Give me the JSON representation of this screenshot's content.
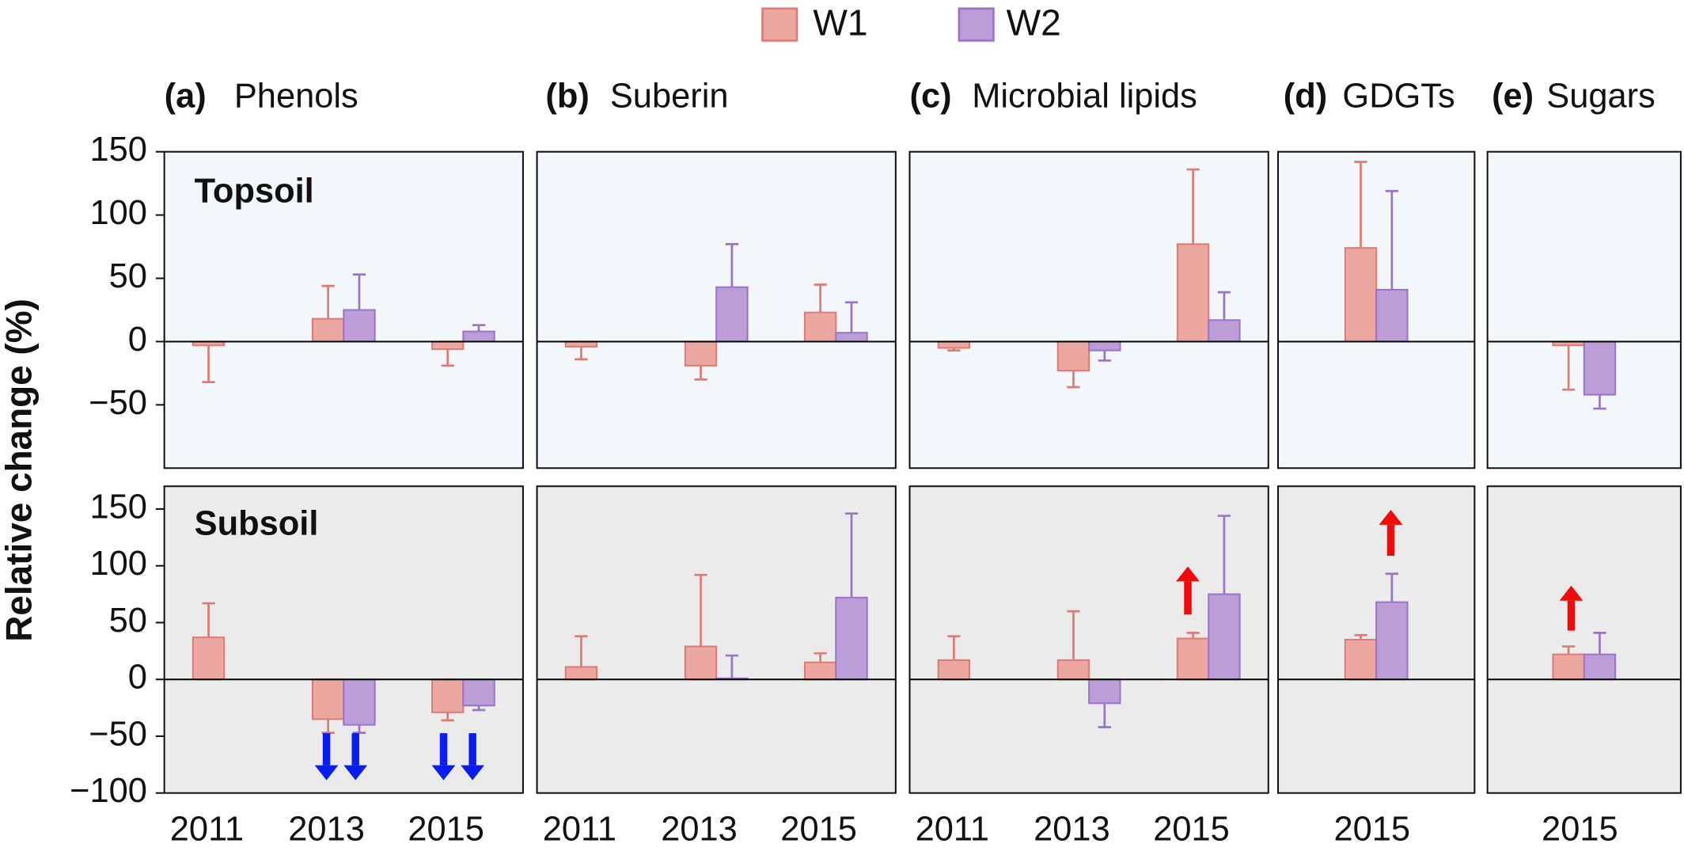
{
  "chart_data": [
    {
      "type": "bar",
      "panel_label": "(a)",
      "title": "Phenols",
      "annotation": "Topsoil",
      "facecolor": "#f3f7fb",
      "categories": [
        null,
        null,
        null
      ],
      "ylim": [
        -100,
        150
      ],
      "yticks": [
        {
          "value": -50,
          "label": "−50"
        },
        0,
        50,
        100,
        150
      ],
      "series": [
        {
          "name": "W1",
          "color": "#eca7a1",
          "edgecolor": "#e07b73",
          "values": [
            -3,
            18,
            -6
          ],
          "errors": [
            29,
            26,
            13
          ]
        },
        {
          "name": "W2",
          "color": "#bb9dd8",
          "edgecolor": "#9b73c8",
          "values": [
            null,
            25,
            8
          ],
          "errors": [
            null,
            28,
            5
          ]
        }
      ]
    },
    {
      "type": "bar",
      "panel_label": "(b)",
      "title": "Suberin",
      "facecolor": "#f3f7fb",
      "categories": [
        null,
        null,
        null
      ],
      "ylim": [
        -100,
        150
      ],
      "series": [
        {
          "name": "W1",
          "color": "#eca7a1",
          "edgecolor": "#e07b73",
          "values": [
            -4,
            -19,
            23
          ],
          "errors": [
            10,
            11,
            22
          ]
        },
        {
          "name": "W2",
          "color": "#bb9dd8",
          "edgecolor": "#9b73c8",
          "values": [
            null,
            43,
            7
          ],
          "errors": [
            null,
            34,
            24
          ]
        }
      ]
    },
    {
      "type": "bar",
      "panel_label": "(c)",
      "title": "Microbial lipids",
      "facecolor": "#f3f7fb",
      "categories": [
        null,
        null,
        null
      ],
      "ylim": [
        -100,
        150
      ],
      "series": [
        {
          "name": "W1",
          "color": "#eca7a1",
          "edgecolor": "#e07b73",
          "values": [
            -5,
            -23,
            77
          ],
          "errors": [
            2,
            13,
            59
          ]
        },
        {
          "name": "W2",
          "color": "#bb9dd8",
          "edgecolor": "#9b73c8",
          "values": [
            null,
            -7,
            17
          ],
          "errors": [
            null,
            8,
            22
          ]
        }
      ]
    },
    {
      "type": "bar",
      "panel_label": "(d)",
      "title": "GDGTs",
      "facecolor": "#f3f7fb",
      "categories": [
        null
      ],
      "ylim": [
        -100,
        150
      ],
      "series": [
        {
          "name": "W1",
          "color": "#eca7a1",
          "edgecolor": "#e07b73",
          "values": [
            74
          ],
          "errors": [
            68
          ]
        },
        {
          "name": "W2",
          "color": "#bb9dd8",
          "edgecolor": "#9b73c8",
          "values": [
            41
          ],
          "errors": [
            78
          ]
        }
      ]
    },
    {
      "type": "bar",
      "panel_label": "(e)",
      "title": "Sugars",
      "facecolor": "#f3f7fb",
      "categories": [
        null
      ],
      "ylim": [
        -100,
        150
      ],
      "series": [
        {
          "name": "W1",
          "color": "#eca7a1",
          "edgecolor": "#e07b73",
          "values": [
            -3
          ],
          "errors": [
            35
          ]
        },
        {
          "name": "W2",
          "color": "#bb9dd8",
          "edgecolor": "#9b73c8",
          "values": [
            -42
          ],
          "errors": [
            11
          ]
        }
      ]
    },
    {
      "type": "bar",
      "annotation": "Subsoil",
      "facecolor": "#ebebeb",
      "categories": [
        "2011",
        "2013",
        "2015"
      ],
      "ylim": [
        -100,
        170
      ],
      "yticks": [
        {
          "value": -100,
          "label": "−100"
        },
        {
          "value": -50,
          "label": "−50"
        },
        0,
        50,
        100,
        150
      ],
      "series": [
        {
          "name": "W1",
          "color": "#eca7a1",
          "edgecolor": "#e07b73",
          "values": [
            37,
            -35,
            -29
          ],
          "errors": [
            30,
            12,
            7
          ]
        },
        {
          "name": "W2",
          "color": "#bb9dd8",
          "edgecolor": "#9b73c8",
          "values": [
            null,
            -40,
            -23
          ],
          "errors": [
            null,
            7,
            4
          ]
        }
      ]
    },
    {
      "type": "bar",
      "facecolor": "#ebebeb",
      "categories": [
        "2011",
        "2013",
        "2015"
      ],
      "ylim": [
        -100,
        170
      ],
      "series": [
        {
          "name": "W1",
          "color": "#eca7a1",
          "edgecolor": "#e07b73",
          "values": [
            11,
            29,
            15
          ],
          "errors": [
            27,
            63,
            8
          ]
        },
        {
          "name": "W2",
          "color": "#bb9dd8",
          "edgecolor": "#9b73c8",
          "values": [
            null,
            1,
            72
          ],
          "errors": [
            null,
            20,
            74
          ]
        }
      ]
    },
    {
      "type": "bar",
      "facecolor": "#ebebeb",
      "categories": [
        "2011",
        "2013",
        "2015"
      ],
      "ylim": [
        -100,
        170
      ],
      "series": [
        {
          "name": "W1",
          "color": "#eca7a1",
          "edgecolor": "#e07b73",
          "values": [
            17,
            17,
            36
          ],
          "errors": [
            21,
            43,
            5
          ]
        },
        {
          "name": "W2",
          "color": "#bb9dd8",
          "edgecolor": "#9b73c8",
          "values": [
            null,
            -21,
            75
          ],
          "errors": [
            null,
            21,
            69
          ]
        }
      ]
    },
    {
      "type": "bar",
      "facecolor": "#ebebeb",
      "categories": [
        "2015"
      ],
      "ylim": [
        -100,
        170
      ],
      "series": [
        {
          "name": "W1",
          "color": "#eca7a1",
          "edgecolor": "#e07b73",
          "values": [
            35
          ],
          "errors": [
            4
          ]
        },
        {
          "name": "W2",
          "color": "#bb9dd8",
          "edgecolor": "#9b73c8",
          "values": [
            68
          ],
          "errors": [
            25
          ]
        }
      ]
    },
    {
      "type": "bar",
      "facecolor": "#ebebeb",
      "categories": [
        "2015"
      ],
      "ylim": [
        -100,
        170
      ],
      "series": [
        {
          "name": "W1",
          "color": "#eca7a1",
          "edgecolor": "#e07b73",
          "values": [
            22
          ],
          "errors": [
            7
          ]
        },
        {
          "name": "W2",
          "color": "#bb9dd8",
          "edgecolor": "#9b73c8",
          "values": [
            22
          ],
          "errors": [
            19
          ]
        }
      ]
    }
  ],
  "ylabel": "Relative change (%)"
}
